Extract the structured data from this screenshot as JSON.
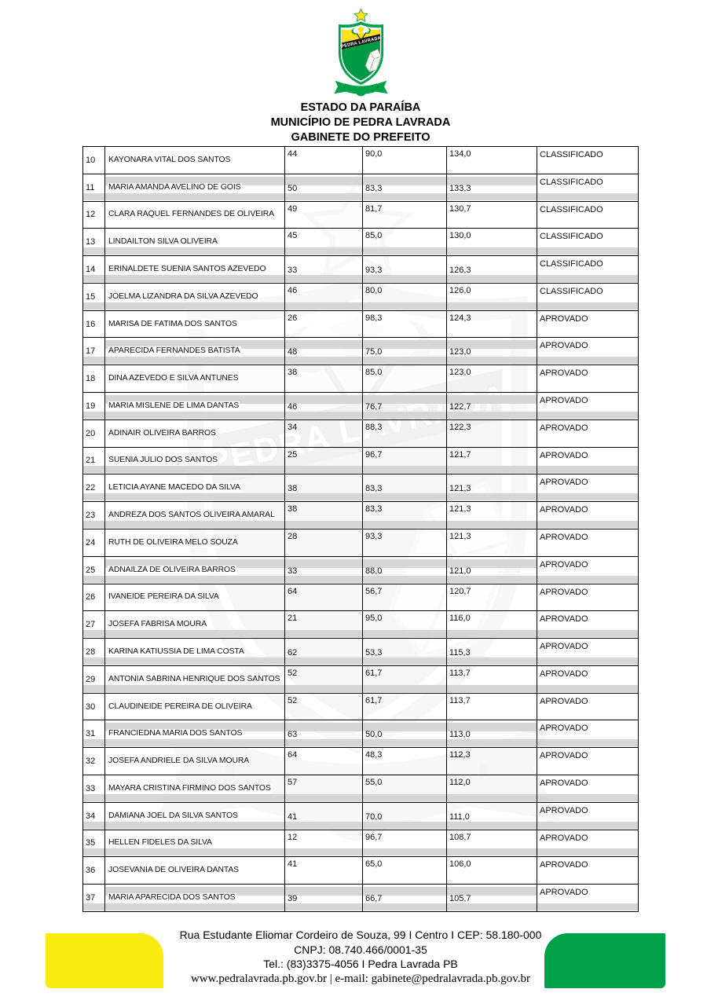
{
  "header": {
    "estado": "ESTADO DA PARAÍBA",
    "municipio": "MUNICÍPIO DE PEDRA LAVRADA",
    "gabinete": "GABINETE DO PREFEITO",
    "crest_banner": "PEDRA LAVRADA"
  },
  "table": {
    "columns": [
      "rank",
      "name",
      "score1",
      "score2",
      "total",
      "status"
    ],
    "rows": [
      {
        "rank": "10",
        "name": "KAYONARA VITAL DOS SANTOS",
        "v1": "44",
        "v2": "90,0",
        "v3": "134,0",
        "status": "CLASSIFICADO",
        "align": "top",
        "stripes": "none"
      },
      {
        "rank": "11",
        "name": "MARIA AMANDA AVELINO DE GOIS",
        "v1": "50",
        "v2": "83,3",
        "v3": "133,3",
        "status": "CLASSIFICADO",
        "align": "bottom",
        "stripes": "both"
      },
      {
        "rank": "12",
        "name": "CLARA RAQUEL FERNANDES DE OLIVEIRA",
        "v1": "49",
        "v2": "81,7",
        "v3": "130,7",
        "status": "CLASSIFICADO",
        "align": "top",
        "stripes": "none"
      },
      {
        "rank": "13",
        "name": "LINDAILTON SILVA OLIVEIRA",
        "v1": "45",
        "v2": "85,0",
        "v3": "130,0",
        "status": "CLASSIFICADO",
        "align": "top",
        "stripes": "bottom"
      },
      {
        "rank": "14",
        "name": "ERINALDETE SUENIA SANTOS AZEVEDO",
        "v1": "33",
        "v2": "93,3",
        "v3": "126,3",
        "status": "CLASSIFICADO",
        "align": "bottom",
        "stripes": "bottom"
      },
      {
        "rank": "15",
        "name": "JOELMA LIZANDRA DA SILVA AZEVEDO",
        "v1": "46",
        "v2": "80,0",
        "v3": "126,0",
        "status": "CLASSIFICADO",
        "align": "top",
        "stripes": "bottom"
      },
      {
        "rank": "16",
        "name": "MARISA DE FATIMA DOS SANTOS",
        "v1": "26",
        "v2": "98,3",
        "v3": "124,3",
        "status": "APROVADO",
        "align": "top",
        "stripes": "none"
      },
      {
        "rank": "17",
        "name": "APARECIDA FERNANDES BATISTA",
        "v1": "48",
        "v2": "75,0",
        "v3": "123,0",
        "status": "APROVADO",
        "align": "bottom",
        "stripes": "both"
      },
      {
        "rank": "18",
        "name": "DINA AZEVEDO E SILVA ANTUNES",
        "v1": "38",
        "v2": "85,0",
        "v3": "123,0",
        "status": "APROVADO",
        "align": "top",
        "stripes": "none"
      },
      {
        "rank": "19",
        "name": "MARIA MISLENE DE LIMA DANTAS",
        "v1": "46",
        "v2": "76,7",
        "v3": "122,7",
        "status": "APROVADO",
        "align": "bottom",
        "stripes": "both"
      },
      {
        "rank": "20",
        "name": "ADINAIR OLIVEIRA BARROS",
        "v1": "34",
        "v2": "88,3",
        "v3": "122,3",
        "status": "APROVADO",
        "align": "top",
        "stripes": "none"
      },
      {
        "rank": "21",
        "name": "SUENIA JULIO DOS SANTOS",
        "v1": "25",
        "v2": "96,7",
        "v3": "121,7",
        "status": "APROVADO",
        "align": "top",
        "stripes": "bottom"
      },
      {
        "rank": "22",
        "name": "LETICIA AYANE MACEDO DA SILVA",
        "v1": "38",
        "v2": "83,3",
        "v3": "121,3",
        "status": "APROVADO",
        "align": "bottom",
        "stripes": "bottom"
      },
      {
        "rank": "23",
        "name": "ANDREZA DOS SANTOS OLIVEIRA AMARAL",
        "v1": "38",
        "v2": "83,3",
        "v3": "121,3",
        "status": "APROVADO",
        "align": "top",
        "stripes": "bottom"
      },
      {
        "rank": "24",
        "name": "RUTH DE OLIVEIRA MELO SOUZA",
        "v1": "28",
        "v2": "93,3",
        "v3": "121,3",
        "status": "APROVADO",
        "align": "top",
        "stripes": "none"
      },
      {
        "rank": "25",
        "name": "ADNAILZA DE OLIVEIRA BARROS",
        "v1": "33",
        "v2": "88,0",
        "v3": "121,0",
        "status": "APROVADO",
        "align": "bottom",
        "stripes": "both"
      },
      {
        "rank": "26",
        "name": "IVANEIDE PEREIRA DA SILVA",
        "v1": "64",
        "v2": "56,7",
        "v3": "120,7",
        "status": "APROVADO",
        "align": "top",
        "stripes": "none"
      },
      {
        "rank": "27",
        "name": "JOSEFA FABRISA MOURA",
        "v1": "21",
        "v2": "95,0",
        "v3": "116,0",
        "status": "APROVADO",
        "align": "top",
        "stripes": "bottom"
      },
      {
        "rank": "28",
        "name": "KARINA KATIUSSIA DE LIMA COSTA",
        "v1": "62",
        "v2": "53,3",
        "v3": "115,3",
        "status": "APROVADO",
        "align": "bottom",
        "stripes": "bottom"
      },
      {
        "rank": "29",
        "name": "ANTONIA SABRINA HENRIQUE DOS SANTOS",
        "v1": "52",
        "v2": "61,7",
        "v3": "113,7",
        "status": "APROVADO",
        "align": "top",
        "stripes": "bottom"
      },
      {
        "rank": "30",
        "name": "CLAUDINEIDE PEREIRA DE OLIVEIRA",
        "v1": "52",
        "v2": "61,7",
        "v3": "113,7",
        "status": "APROVADO",
        "align": "top",
        "stripes": "none"
      },
      {
        "rank": "31",
        "name": "FRANCIEDNA MARIA DOS SANTOS",
        "v1": "63",
        "v2": "50,0",
        "v3": "113,0",
        "status": "APROVADO",
        "align": "bottom",
        "stripes": "both"
      },
      {
        "rank": "32",
        "name": "JOSEFA ANDRIELE DA SILVA MOURA",
        "v1": "64",
        "v2": "48,3",
        "v3": "112,3",
        "status": "APROVADO",
        "align": "top",
        "stripes": "none"
      },
      {
        "rank": "33",
        "name": "MAYARA CRISTINA FIRMINO DOS SANTOS",
        "v1": "57",
        "v2": "55,0",
        "v3": "112,0",
        "status": "APROVADO",
        "align": "top",
        "stripes": "bottom"
      },
      {
        "rank": "34",
        "name": "DAMIANA JOEL DA SILVA SANTOS",
        "v1": "41",
        "v2": "70,0",
        "v3": "111,0",
        "status": "APROVADO",
        "align": "bottom",
        "stripes": "bottom"
      },
      {
        "rank": "35",
        "name": "HELLEN FIDELES DA SILVA",
        "v1": "12",
        "v2": "96,7",
        "v3": "108,7",
        "status": "APROVADO",
        "align": "top",
        "stripes": "bottom"
      },
      {
        "rank": "36",
        "name": "JOSEVANIA DE OLIVEIRA DANTAS",
        "v1": "41",
        "v2": "65,0",
        "v3": "106,0",
        "status": "APROVADO",
        "align": "top",
        "stripes": "none"
      },
      {
        "rank": "37",
        "name": "MARIA APARECIDA DOS SANTOS",
        "v1": "39",
        "v2": "66,7",
        "v3": "105,7",
        "status": "APROVADO",
        "align": "bottom",
        "stripes": "both"
      }
    ]
  },
  "footer": {
    "address": "Rua Estudante Eliomar Cordeiro de Souza, 99 I Centro I CEP: 58.180-000",
    "cnpj": "CNPJ: 08.740.466/0001-35",
    "tel": "Tel.: (83)3375-4056 I Pedra Lavrada PB",
    "web": "www.pedralavrada.pb.gov.br | e-mail: gabinete@pedralavrada.pb.gov.br"
  },
  "colors": {
    "green": "#00A14B",
    "yellow": "#F9EA10",
    "stripe": "#D6D6D6",
    "black": "#000000"
  }
}
